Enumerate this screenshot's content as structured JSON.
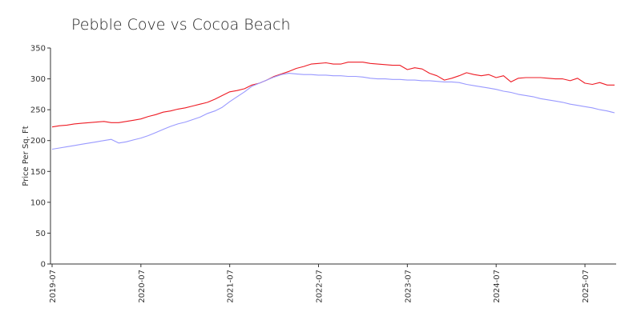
{
  "chart_data": {
    "type": "line",
    "title": "Pebble Cove vs Cocoa Beach",
    "xlabel": "",
    "ylabel": "Price Per Sq. Ft",
    "ylim": [
      0,
      350
    ],
    "yticks": [
      0,
      50,
      100,
      150,
      200,
      250,
      300,
      350
    ],
    "xticks": [
      "2019-07",
      "2020-07",
      "2021-07",
      "2022-07",
      "2023-07",
      "2024-07",
      "2025-07"
    ],
    "x": [
      "2019-07",
      "2019-08",
      "2019-09",
      "2019-10",
      "2019-11",
      "2019-12",
      "2020-01",
      "2020-02",
      "2020-03",
      "2020-04",
      "2020-05",
      "2020-06",
      "2020-07",
      "2020-08",
      "2020-09",
      "2020-10",
      "2020-11",
      "2020-12",
      "2021-01",
      "2021-02",
      "2021-03",
      "2021-04",
      "2021-05",
      "2021-06",
      "2021-07",
      "2021-08",
      "2021-09",
      "2021-10",
      "2021-11",
      "2021-12",
      "2022-01",
      "2022-02",
      "2022-03",
      "2022-04",
      "2022-05",
      "2022-06",
      "2022-07",
      "2022-08",
      "2022-09",
      "2022-10",
      "2022-11",
      "2022-12",
      "2023-01",
      "2023-02",
      "2023-03",
      "2023-04",
      "2023-05",
      "2023-06",
      "2023-07",
      "2023-08",
      "2023-09",
      "2023-10",
      "2023-11",
      "2023-12",
      "2024-01",
      "2024-02",
      "2024-03",
      "2024-04",
      "2024-05",
      "2024-06",
      "2024-07",
      "2024-08",
      "2024-09",
      "2024-10",
      "2024-11",
      "2024-12",
      "2025-01",
      "2025-02",
      "2025-03",
      "2025-04",
      "2025-05",
      "2025-06",
      "2025-07",
      "2025-08",
      "2025-09",
      "2025-10",
      "2025-11"
    ],
    "grid": false,
    "legend": "none",
    "series": [
      {
        "color": "#ee1c25",
        "values": [
          222,
          224,
          225,
          227,
          228,
          229,
          230,
          231,
          229,
          229,
          231,
          233,
          235,
          239,
          242,
          246,
          248,
          251,
          253,
          256,
          259,
          262,
          267,
          273,
          279,
          281,
          284,
          290,
          293,
          298,
          304,
          308,
          312,
          317,
          320,
          324,
          325,
          326,
          324,
          324,
          327,
          327,
          327,
          325,
          324,
          323,
          322,
          322,
          315,
          318,
          316,
          309,
          305,
          298,
          301,
          305,
          310,
          307,
          305,
          307,
          302,
          305,
          295,
          301,
          302,
          302,
          302,
          301,
          300,
          300,
          297,
          301,
          293,
          291,
          294,
          290,
          290
        ]
      },
      {
        "color": "#9999ff",
        "values": [
          186,
          188,
          190,
          192,
          194,
          196,
          198,
          200,
          202,
          196,
          198,
          201,
          204,
          208,
          213,
          218,
          223,
          227,
          230,
          234,
          238,
          244,
          248,
          254,
          263,
          271,
          279,
          288,
          293,
          298,
          303,
          307,
          309,
          308,
          307,
          307,
          306,
          306,
          305,
          305,
          304,
          304,
          303,
          301,
          300,
          300,
          299,
          299,
          298,
          298,
          297,
          297,
          296,
          295,
          295,
          294,
          291,
          289,
          287,
          285,
          283,
          280,
          278,
          275,
          273,
          271,
          268,
          266,
          264,
          262,
          259,
          257,
          255,
          253,
          250,
          248,
          245
        ]
      }
    ]
  }
}
